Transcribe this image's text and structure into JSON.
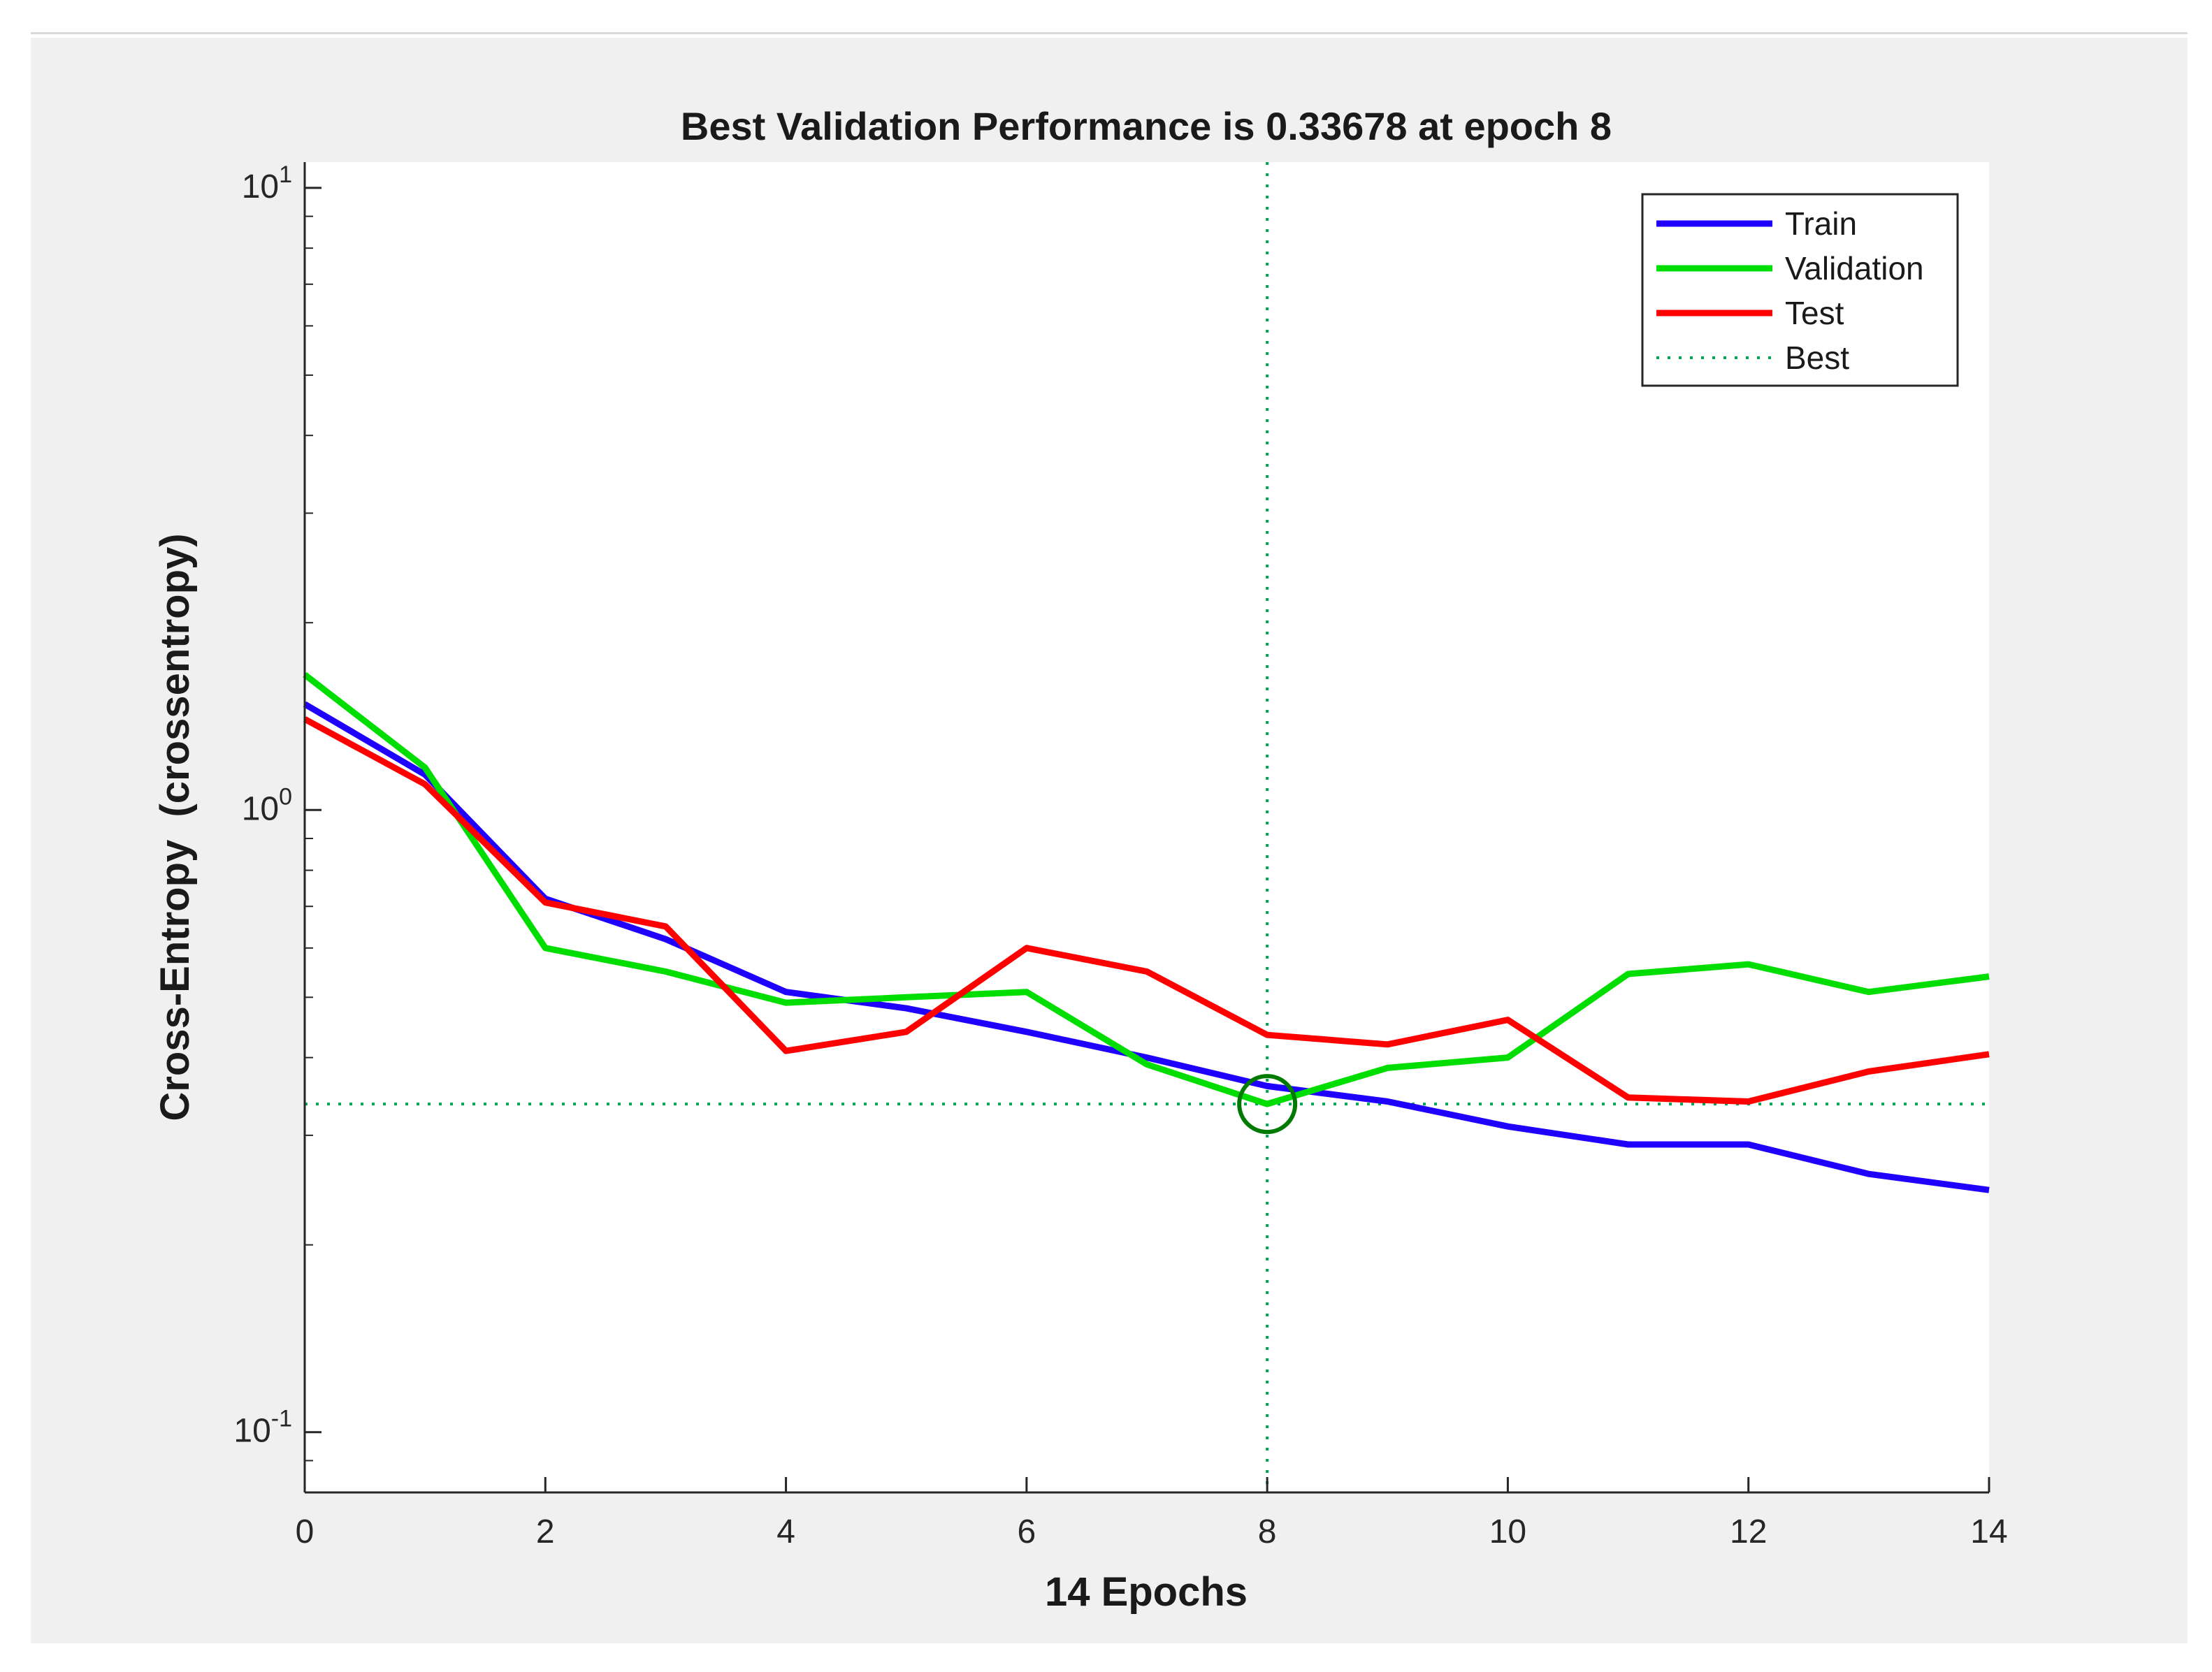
{
  "chart_data": {
    "type": "line",
    "title": "Best Validation Performance is 0.33678 at epoch 8",
    "xlabel": "14 Epochs",
    "ylabel": "Cross-Entropy  (crossentropy)",
    "yscale": "log",
    "xlim": [
      0,
      14
    ],
    "ylim": [
      0.08,
      11
    ],
    "grid": false,
    "legend_position": "top-right",
    "x": [
      0,
      1,
      2,
      3,
      4,
      5,
      6,
      7,
      8,
      9,
      10,
      11,
      12,
      13,
      14
    ],
    "x_ticks": [
      "0",
      "2",
      "4",
      "6",
      "8",
      "10",
      "12",
      "14"
    ],
    "y_ticks": [
      {
        "value": 0.1,
        "base": "10",
        "exp": "-1"
      },
      {
        "value": 1,
        "base": "10",
        "exp": "0"
      },
      {
        "value": 10,
        "base": "10",
        "exp": "1"
      }
    ],
    "series": [
      {
        "name": "Train",
        "color": "#1f00ff",
        "style": "solid",
        "values": [
          1.48,
          1.14,
          0.72,
          0.62,
          0.51,
          0.48,
          0.44,
          0.4,
          0.36,
          0.34,
          0.31,
          0.29,
          0.29,
          0.26,
          0.245
        ]
      },
      {
        "name": "Validation",
        "color": "#00dd00",
        "style": "solid",
        "values": [
          1.65,
          1.17,
          0.6,
          0.55,
          0.49,
          0.5,
          0.51,
          0.39,
          0.33678,
          0.385,
          0.4,
          0.545,
          0.565,
          0.51,
          0.54
        ]
      },
      {
        "name": "Test",
        "color": "#ff0000",
        "style": "solid",
        "values": [
          1.4,
          1.1,
          0.71,
          0.65,
          0.41,
          0.44,
          0.6,
          0.55,
          0.435,
          0.42,
          0.46,
          0.345,
          0.34,
          0.38,
          0.405
        ]
      },
      {
        "name": "Best",
        "color": "#00a651",
        "style": "dotted",
        "x": 8,
        "y": 0.33678
      }
    ]
  }
}
